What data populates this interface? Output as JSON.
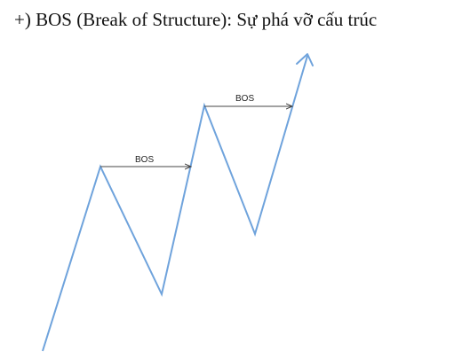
{
  "heading": "+) BOS (Break of Structure): Sự phá vỡ cấu trúc",
  "labels": {
    "bos_first": "BOS",
    "bos_second": "BOS"
  },
  "colors": {
    "price_line": "#6fa3dc",
    "break_line": "#444444",
    "text": "#111111"
  }
}
